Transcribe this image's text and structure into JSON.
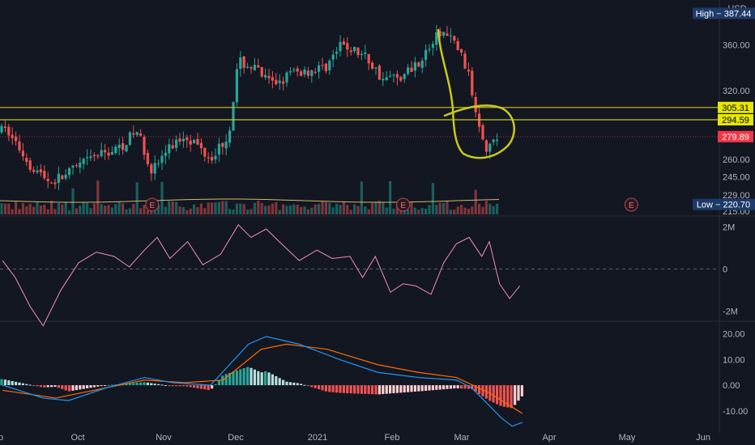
{
  "currency": "USD",
  "high_label": "High",
  "high_value": "387.44",
  "low_label": "Low",
  "low_value": "220.70",
  "x_ticks": [
    "ep",
    "Oct",
    "Nov",
    "Dec",
    "2021",
    "Feb",
    "Mar",
    "Apr",
    "May",
    "Jun"
  ],
  "earnings_marker": "E",
  "colors": {
    "background": "#131722",
    "up": "#26a69a",
    "down": "#ef5350",
    "yellow": "#c8c81e",
    "pink_line": "#f48fb1",
    "macd_line": "#2196f3",
    "signal_line": "#ff6d00",
    "hist_light_green": "#b2dfdb",
    "hist_light_red": "#ffcdd2",
    "label_blue": "#1e3a6a",
    "label_red": "#f23645"
  },
  "chart_data": [
    {
      "type": "candlestick",
      "name": "price",
      "y_ticks": [
        "360.00",
        "320.00",
        "260.00",
        "245.00",
        "229.00",
        "215.00"
      ],
      "ylim": [
        212,
        392
      ],
      "horizontal_lines": [
        {
          "label": "305.31",
          "value": 305.31
        },
        {
          "label": "294.59",
          "value": 294.59
        }
      ],
      "last_price": {
        "label": "279.89",
        "value": 279.89
      },
      "earnings_dates": [
        "2020-10-28",
        "2021-02-04",
        "2021-05-05"
      ],
      "segments": [
        [
          "2020-09-01",
          285
        ],
        [
          "2020-09-10",
          255
        ],
        [
          "2020-09-18",
          240
        ],
        [
          "2020-09-25",
          248
        ],
        [
          "2020-10-05",
          262
        ],
        [
          "2020-10-15",
          270
        ],
        [
          "2020-10-22",
          285
        ],
        [
          "2020-10-28",
          250
        ],
        [
          "2020-11-03",
          268
        ],
        [
          "2020-11-10",
          282
        ],
        [
          "2020-11-20",
          262
        ],
        [
          "2020-11-27",
          280
        ],
        [
          "2020-12-01",
          345
        ],
        [
          "2020-12-07",
          340
        ],
        [
          "2020-12-14",
          325
        ],
        [
          "2020-12-22",
          335
        ],
        [
          "2021-01-04",
          340
        ],
        [
          "2021-01-11",
          360
        ],
        [
          "2021-01-20",
          350
        ],
        [
          "2021-01-27",
          330
        ],
        [
          "2021-02-04",
          333
        ],
        [
          "2021-02-12",
          350
        ],
        [
          "2021-02-19",
          372
        ],
        [
          "2021-02-25",
          360
        ],
        [
          "2021-03-01",
          340
        ],
        [
          "2021-03-05",
          300
        ],
        [
          "2021-03-09",
          270
        ],
        [
          "2021-03-14",
          280
        ]
      ]
    },
    {
      "type": "line",
      "name": "volume oscillator",
      "y_ticks": [
        "2M",
        "0",
        "-2M"
      ],
      "ylim": [
        -2.4,
        2.4
      ],
      "series": [
        {
          "points": [
            [
              "2020-08-30",
              0.4
            ],
            [
              "2020-09-04",
              -0.4
            ],
            [
              "2020-09-10",
              -1.8
            ],
            [
              "2020-09-15",
              -2.7
            ],
            [
              "2020-09-22",
              -1.0
            ],
            [
              "2020-09-29",
              0.3
            ],
            [
              "2020-10-06",
              0.8
            ],
            [
              "2020-10-13",
              0.6
            ],
            [
              "2020-10-19",
              0.1
            ],
            [
              "2020-10-25",
              0.9
            ],
            [
              "2020-10-30",
              1.5
            ],
            [
              "2020-11-04",
              0.5
            ],
            [
              "2020-11-11",
              1.3
            ],
            [
              "2020-11-17",
              0.2
            ],
            [
              "2020-11-24",
              0.7
            ],
            [
              "2020-11-29",
              1.7
            ],
            [
              "2020-12-01",
              2.1
            ],
            [
              "2020-12-06",
              1.5
            ],
            [
              "2020-12-12",
              1.9
            ],
            [
              "2020-12-18",
              1.2
            ],
            [
              "2020-12-25",
              0.4
            ],
            [
              "2021-01-01",
              0.9
            ],
            [
              "2021-01-07",
              0.5
            ],
            [
              "2021-01-14",
              0.6
            ],
            [
              "2021-01-19",
              -0.4
            ],
            [
              "2021-01-24",
              0.6
            ],
            [
              "2021-01-30",
              -1.1
            ],
            [
              "2021-02-04",
              -0.7
            ],
            [
              "2021-02-09",
              -0.8
            ],
            [
              "2021-02-15",
              -1.2
            ],
            [
              "2021-02-20",
              0.3
            ],
            [
              "2021-02-25",
              1.2
            ],
            [
              "2021-03-02",
              1.5
            ],
            [
              "2021-03-07",
              0.6
            ],
            [
              "2021-03-10",
              1.3
            ],
            [
              "2021-03-14",
              -0.7
            ],
            [
              "2021-03-18",
              -1.4
            ],
            [
              "2021-03-22",
              -0.8
            ]
          ]
        }
      ]
    },
    {
      "type": "macd",
      "name": "MACD",
      "y_ticks": [
        "20.00",
        "10.00",
        "0.00",
        "-10.00"
      ],
      "ylim": [
        -17,
        24
      ],
      "series": [
        {
          "role": "macd",
          "points": [
            [
              "2020-08-30",
              0
            ],
            [
              "2020-09-15",
              -5
            ],
            [
              "2020-09-25",
              -6
            ],
            [
              "2020-10-10",
              -1
            ],
            [
              "2020-10-25",
              3
            ],
            [
              "2020-11-05",
              1
            ],
            [
              "2020-11-20",
              0
            ],
            [
              "2020-12-05",
              16
            ],
            [
              "2020-12-12",
              19
            ],
            [
              "2020-12-25",
              16
            ],
            [
              "2021-01-10",
              10
            ],
            [
              "2021-01-25",
              5
            ],
            [
              "2021-02-10",
              3
            ],
            [
              "2021-02-25",
              2
            ],
            [
              "2021-03-03",
              -1
            ],
            [
              "2021-03-10",
              -8
            ],
            [
              "2021-03-15",
              -13
            ],
            [
              "2021-03-19",
              -16
            ],
            [
              "2021-03-23",
              -14.5
            ]
          ]
        },
        {
          "role": "signal",
          "points": [
            [
              "2020-08-30",
              -2
            ],
            [
              "2020-09-20",
              -5
            ],
            [
              "2020-10-05",
              -2
            ],
            [
              "2020-10-25",
              2
            ],
            [
              "2020-11-10",
              1
            ],
            [
              "2020-11-25",
              2
            ],
            [
              "2020-12-10",
              14
            ],
            [
              "2020-12-20",
              16
            ],
            [
              "2021-01-05",
              14
            ],
            [
              "2021-01-25",
              8
            ],
            [
              "2021-02-10",
              5
            ],
            [
              "2021-02-25",
              3
            ],
            [
              "2021-03-10",
              -3
            ],
            [
              "2021-03-23",
              -11
            ]
          ]
        }
      ]
    }
  ]
}
